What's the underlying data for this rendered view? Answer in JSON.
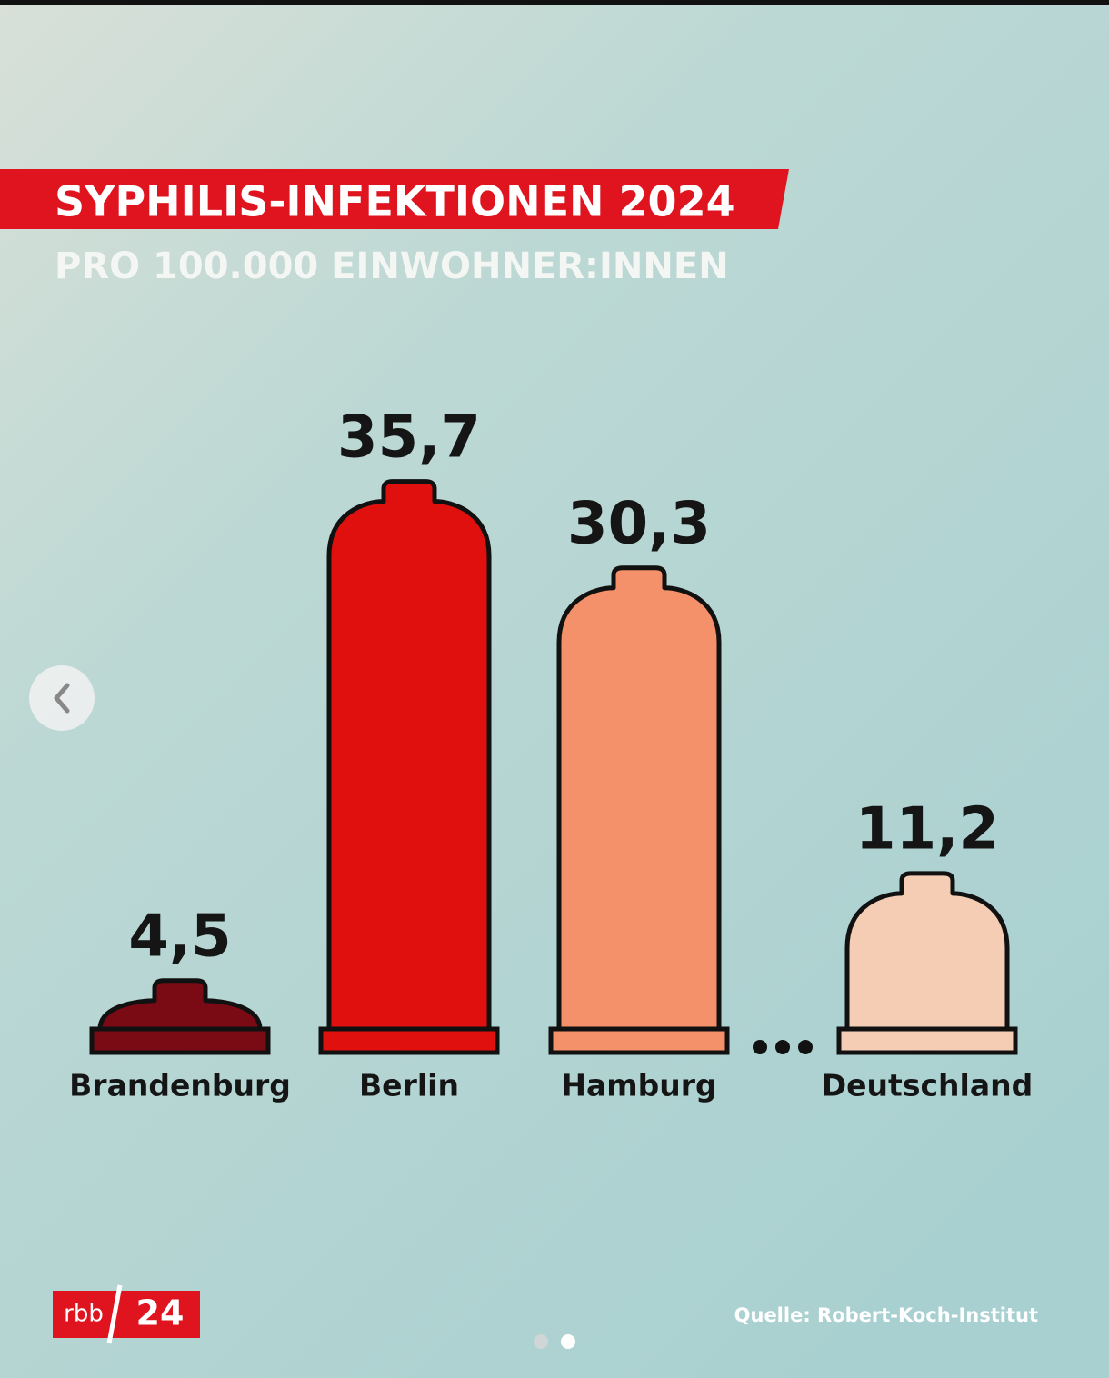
{
  "chart_data": {
    "type": "bar",
    "title": "SYPHILIS-INFEKTIONEN 2024",
    "subtitle": "PRO 100.000 EINWOHNER:INNEN",
    "categories": [
      "Brandenburg",
      "Berlin",
      "Hamburg",
      "Deutschland"
    ],
    "values": [
      4.5,
      35.7,
      30.3,
      11.2
    ],
    "value_labels": [
      "4,5",
      "35,7",
      "30,3",
      "11,2"
    ],
    "colors": [
      "#7a0a14",
      "#e0100f",
      "#f4916a",
      "#f5cdb5"
    ],
    "source": "Quelle: Robert-Koch-Institut",
    "logo": [
      "rbb",
      "24"
    ]
  }
}
